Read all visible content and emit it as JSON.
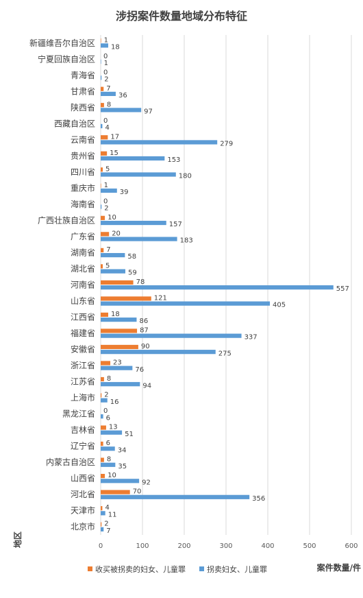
{
  "chart_data": {
    "type": "bar",
    "orientation": "horizontal",
    "title": "涉拐案件数量地域分布特征",
    "xlabel": "案件数量/件",
    "ylabel": "地区",
    "xlim": [
      0,
      600
    ],
    "xticks": [
      0,
      100,
      200,
      300,
      400,
      500,
      600
    ],
    "grid": true,
    "legend_position": "bottom-left",
    "categories": [
      "新疆维吾尔自治区",
      "宁夏回族自治区",
      "青海省",
      "甘肃省",
      "陕西省",
      "西藏自治区",
      "云南省",
      "贵州省",
      "四川省",
      "重庆市",
      "海南省",
      "广西壮族自治区",
      "广东省",
      "湖南省",
      "湖北省",
      "河南省",
      "山东省",
      "江西省",
      "福建省",
      "安徽省",
      "浙江省",
      "江苏省",
      "上海市",
      "黑龙江省",
      "吉林省",
      "辽宁省",
      "内蒙古自治区",
      "山西省",
      "河北省",
      "天津市",
      "北京市"
    ],
    "series": [
      {
        "name": "收买被拐卖的妇女、儿童罪",
        "color": "#ED7D31",
        "values": [
          1,
          0,
          0,
          7,
          8,
          0,
          17,
          15,
          5,
          1,
          0,
          10,
          20,
          7,
          5,
          78,
          121,
          18,
          87,
          90,
          23,
          8,
          2,
          0,
          13,
          6,
          8,
          10,
          70,
          4,
          2
        ]
      },
      {
        "name": "拐卖妇女、儿童罪",
        "color": "#5B9BD5",
        "values": [
          18,
          1,
          2,
          36,
          97,
          4,
          279,
          153,
          180,
          39,
          2,
          157,
          183,
          58,
          59,
          557,
          405,
          86,
          337,
          275,
          76,
          94,
          16,
          6,
          51,
          34,
          35,
          92,
          356,
          11,
          7
        ]
      }
    ]
  }
}
